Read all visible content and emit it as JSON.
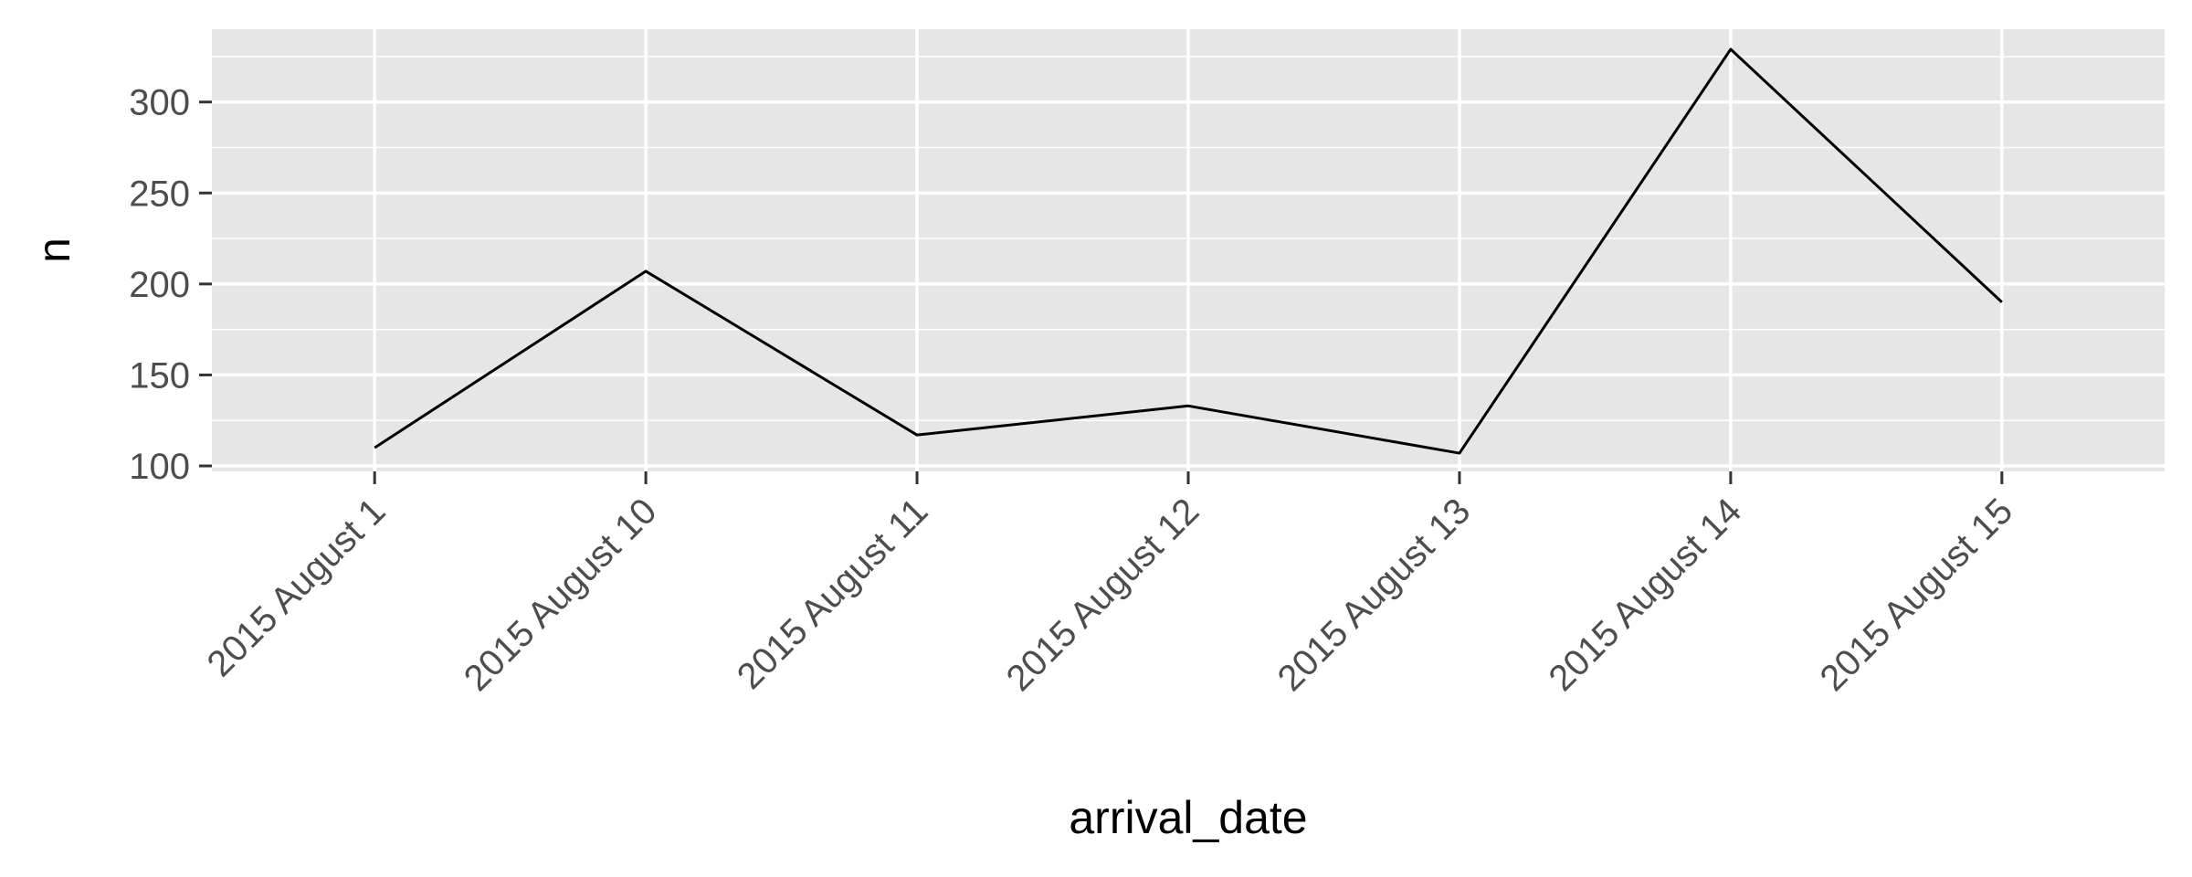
{
  "chart_data": {
    "type": "line",
    "title": "",
    "xlabel": "arrival_date",
    "ylabel": "n",
    "categories": [
      "2015 August 1",
      "2015 August 10",
      "2015 August 11",
      "2015 August 12",
      "2015 August 13",
      "2015 August 14",
      "2015 August 15"
    ],
    "series": [
      {
        "values": [
          110,
          207,
          117,
          133,
          107,
          329,
          190
        ]
      }
    ],
    "ylim": [
      97,
      340
    ],
    "yticks": [
      100,
      150,
      200,
      250,
      300
    ],
    "grid": true,
    "legend": "none",
    "colors": {
      "panel_background": "#e6e6e6",
      "grid": "#ffffff",
      "line": "#000000",
      "tick_text": "#4d4d4d"
    }
  }
}
